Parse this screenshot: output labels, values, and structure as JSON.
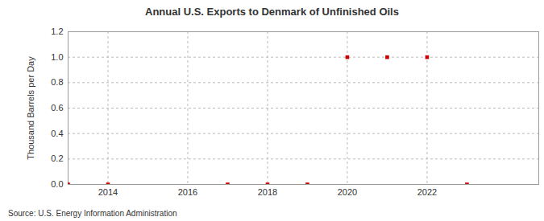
{
  "chart_data": {
    "type": "scatter",
    "title": "Annual U.S. Exports to Denmark of Unfinished Oils",
    "y_label": "Thousand Barrels per Day",
    "source": "Source: U.S. Energy Information Administration",
    "x": [
      2013,
      2014,
      2017,
      2018,
      2019,
      2020,
      2021,
      2022,
      2023
    ],
    "values": [
      0,
      0,
      0,
      0,
      0,
      1,
      1,
      1,
      0
    ],
    "color": "#cc0000",
    "marker": "square",
    "xlim": [
      2013,
      2024.8
    ],
    "xticks": [
      2014,
      2016,
      2018,
      2020,
      2022
    ],
    "ylim": [
      0,
      1.2
    ],
    "yticks": [
      {
        "value": 0,
        "label": "0.0"
      },
      {
        "value": 0.2,
        "label": "0.2"
      },
      {
        "value": 0.4,
        "label": "0.4"
      },
      {
        "value": 0.6,
        "label": "0.6"
      },
      {
        "value": 0.8,
        "label": "0.8"
      },
      {
        "value": 1.0,
        "label": "1.0"
      },
      {
        "value": 1.2,
        "label": "1.2"
      }
    ],
    "grid": true
  }
}
